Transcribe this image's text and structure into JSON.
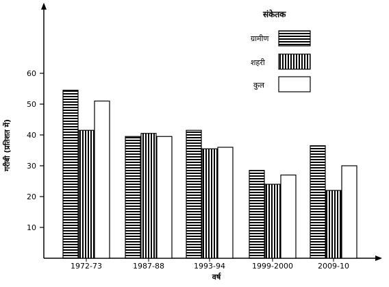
{
  "chart_data": {
    "type": "bar",
    "categories": [
      "1972-73",
      "1987-88",
      "1993-94",
      "1999-2000",
      "2009-10"
    ],
    "series": [
      {
        "name": "ग्रामीण",
        "pattern": "horizontal-hatch",
        "values": [
          54.5,
          39.5,
          41.5,
          28.5,
          36.5
        ]
      },
      {
        "name": "शहरी",
        "pattern": "vertical-hatch",
        "values": [
          41.5,
          40.5,
          35.5,
          24.0,
          22.0
        ]
      },
      {
        "name": "कुल",
        "pattern": "white",
        "values": [
          51.0,
          39.5,
          36.0,
          27.0,
          30.0
        ]
      }
    ],
    "xlabel": "वर्ष",
    "ylabel": "गरीबी (प्रतिशत में)",
    "ylim": [
      0,
      70
    ],
    "yticks": [
      10,
      20,
      30,
      40,
      50,
      60
    ],
    "legend_title": "संकेतक",
    "legend_position": "top-right",
    "grid": false,
    "colors": {
      "ink": "#000000",
      "fill": "#ffffff"
    }
  }
}
